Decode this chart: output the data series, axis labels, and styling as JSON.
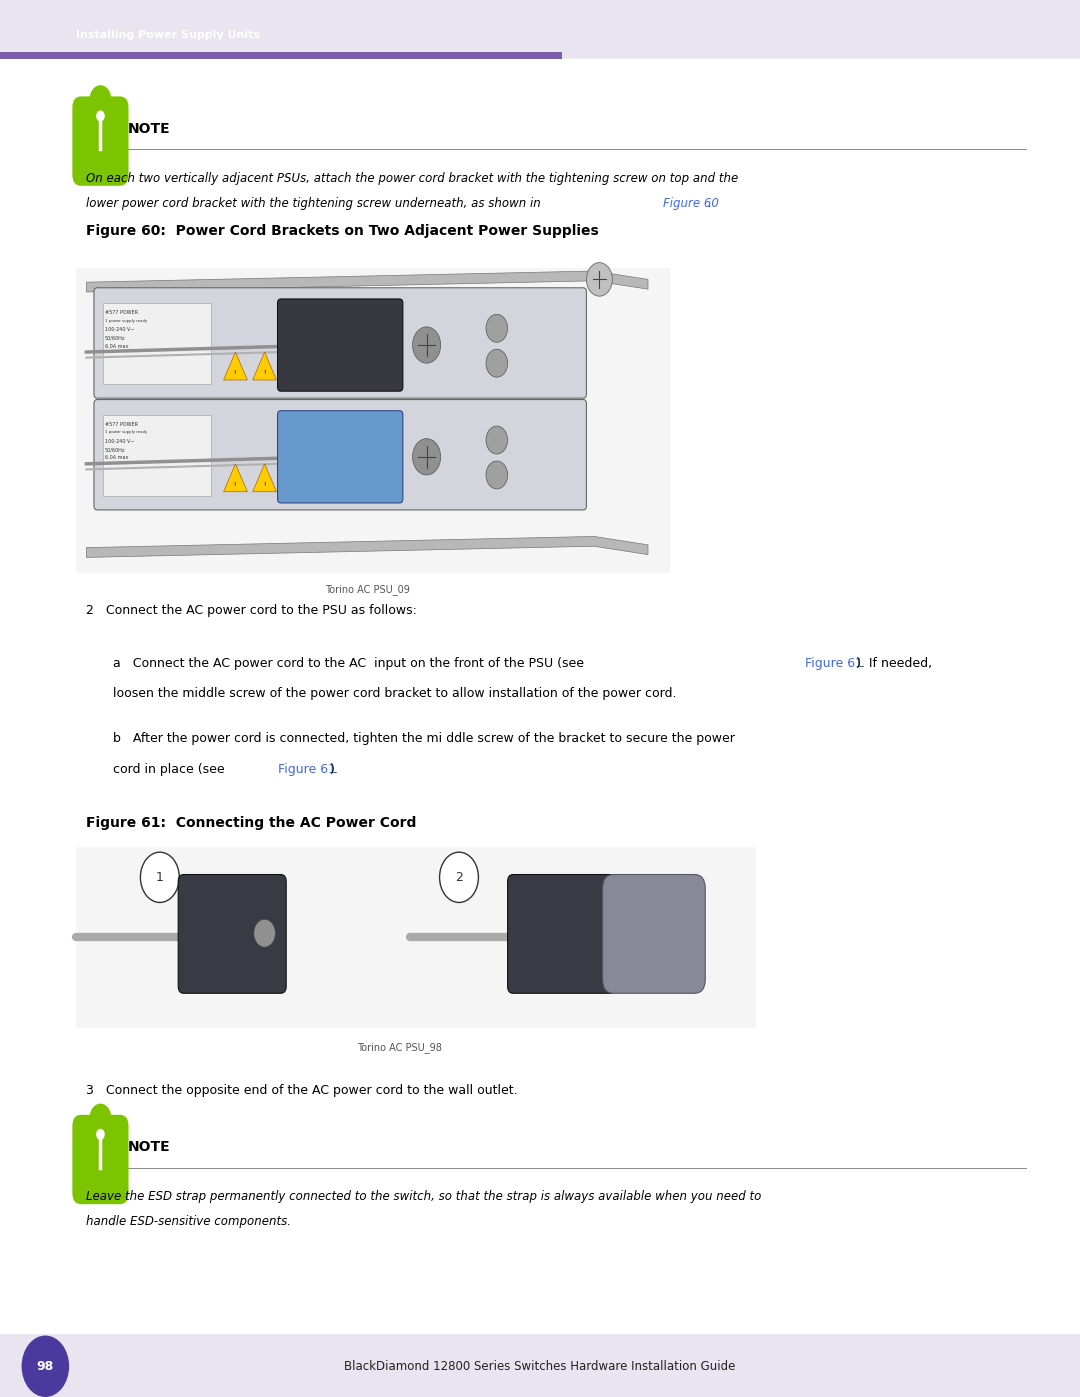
{
  "page_width": 10.8,
  "page_height": 13.97,
  "bg_color": "#ffffff",
  "header_bg": "#e8e4f0",
  "header_text": "Installing Power Supply Units",
  "header_text_color": "#ffffff",
  "header_bar_color": "#7b5ea7",
  "footer_bg": "#e8e4f0",
  "footer_text": "BlackDiamond 12800 Series Switches Hardware Installation Guide",
  "footer_page_num": "98",
  "footer_page_circle_color": "#4b3a9e",
  "note_icon_color": "#7dc400",
  "note_label": "NOTE",
  "note_line_color": "#888888",
  "note_text_line1": "On each two vertically adjacent PSUs, attach the power cord bracket with the tightening screw on top and the",
  "note_text_line2": "lower power cord bracket with the tightening screw underneath, as shown in ",
  "note_text_link": "Figure 60",
  "note_text_end": ".",
  "figure60_label": "Figure 60:  Power Cord Brackets on Two Adjacent Power Supplies",
  "figure60_caption": "Torino AC PSU_09",
  "figure61_label": "Figure 61:  Connecting the AC Power Cord",
  "figure61_caption": "Torino AC PSU_98",
  "step2_text": "2   Connect the AC power cord to the PSU as follows:",
  "step2a_text": "a   Connect the AC power cord to the AC  input on the front of the PSU (see ",
  "step2a_link": "Figure 61",
  "step2a_text2": "). If needed,",
  "step2a_text3": "    loosen the middle screw of the power cord bracket to allow installation of the power cord.",
  "step2b_text": "b   After the power cord is connected, tighten the mi ddle screw of the bracket to secure the power",
  "step2b_text2": "    cord in place (see",
  "step2b_link": "Figure 61",
  "step2b_text3": ").",
  "step3_text": "3   Connect the opposite end of the AC power cord to the wall outlet.",
  "note2_label": "NOTE",
  "note2_text_line1": "Leave the ESD strap permanently connected to the switch, so that the strap is always available when you need to",
  "note2_text_line2": "handle ESD-sensitive components.",
  "link_color": "#4169e1",
  "body_text_color": "#000000",
  "italic_text_color": "#000000"
}
